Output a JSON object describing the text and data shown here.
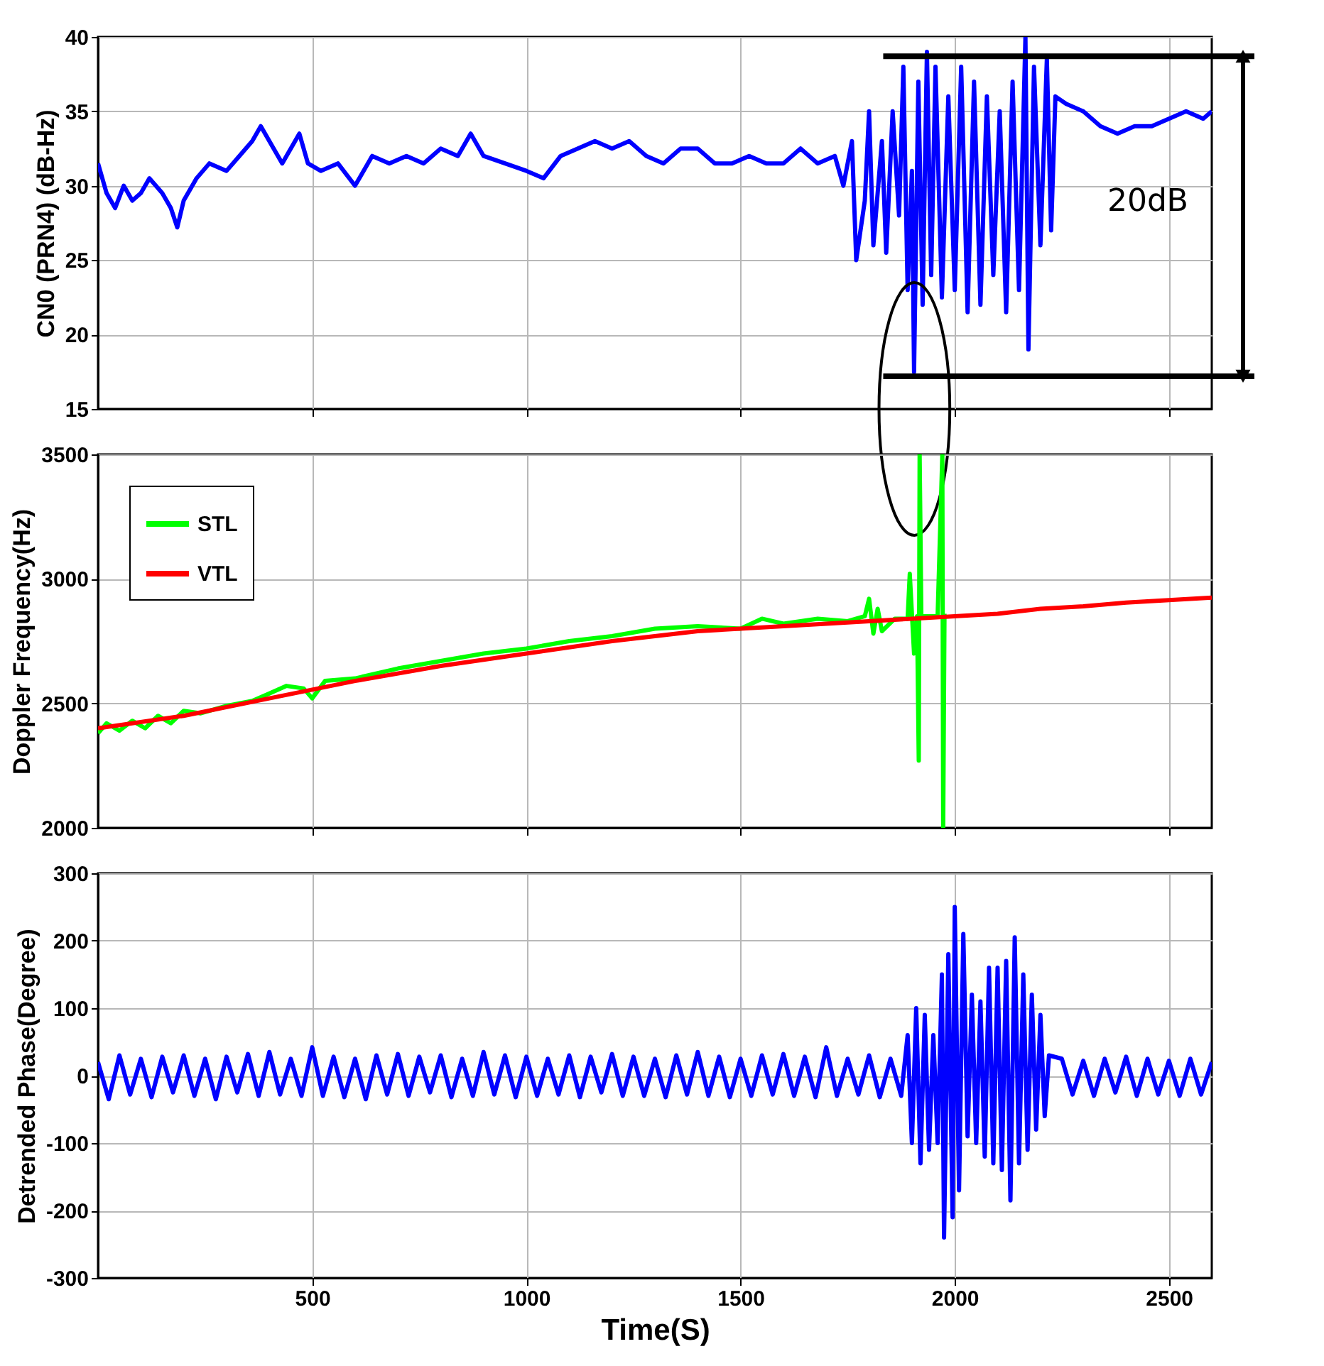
{
  "chart_data": [
    {
      "type": "line",
      "ylabel": "CN0 (PRN4) (dB-Hz)",
      "xlim": [
        0,
        2600
      ],
      "ylim": [
        15,
        40
      ],
      "xticks": [
        500,
        1000,
        1500,
        2000,
        2500
      ],
      "yticks": [
        15,
        20,
        25,
        30,
        35,
        40
      ],
      "grid": true,
      "tick_labels": "y",
      "series": [
        {
          "color": "#0000ff",
          "x": [
            0,
            20,
            40,
            60,
            80,
            100,
            120,
            150,
            170,
            185,
            200,
            230,
            260,
            300,
            330,
            360,
            380,
            400,
            430,
            470,
            490,
            520,
            560,
            600,
            640,
            680,
            720,
            760,
            800,
            840,
            870,
            900,
            950,
            1000,
            1040,
            1080,
            1120,
            1160,
            1200,
            1240,
            1280,
            1320,
            1360,
            1400,
            1440,
            1480,
            1520,
            1560,
            1600,
            1640,
            1680,
            1720,
            1740,
            1760,
            1770,
            1790,
            1800,
            1810,
            1830,
            1840,
            1855,
            1870,
            1880,
            1890,
            1900,
            1905,
            1915,
            1925,
            1935,
            1945,
            1955,
            1970,
            1985,
            2000,
            2015,
            2030,
            2045,
            2060,
            2075,
            2090,
            2105,
            2120,
            2135,
            2150,
            2165,
            2172,
            2185,
            2200,
            2215,
            2225,
            2235,
            2260,
            2300,
            2340,
            2380,
            2420,
            2460,
            2500,
            2540,
            2580,
            2600
          ],
          "values": [
            31.5,
            29.5,
            28.5,
            30,
            29,
            29.5,
            30.5,
            29.5,
            28.5,
            27.2,
            29,
            30.5,
            31.5,
            31,
            32,
            33,
            34,
            33,
            31.5,
            33.5,
            31.5,
            31,
            31.5,
            30,
            32,
            31.5,
            32,
            31.5,
            32.5,
            32,
            33.5,
            32,
            31.5,
            31,
            30.5,
            32,
            32.5,
            33,
            32.5,
            33,
            32,
            31.5,
            32.5,
            32.5,
            31.5,
            31.5,
            32,
            31.5,
            31.5,
            32.5,
            31.5,
            32,
            30,
            33,
            25,
            29,
            35,
            26,
            33,
            25.5,
            35,
            28,
            38,
            23,
            31,
            17.5,
            37,
            22,
            39,
            24,
            38,
            22.5,
            36,
            23,
            38,
            21.5,
            37,
            22,
            36,
            24,
            35,
            21.5,
            37,
            23,
            40,
            19,
            38,
            26,
            38.5,
            27,
            36,
            35.5,
            35,
            34,
            33.5,
            34,
            34,
            34.5,
            35,
            34.5,
            35
          ]
        }
      ],
      "ref_lines": [
        {
          "axis": "y",
          "value": 38.7,
          "color": "#000000"
        },
        {
          "axis": "y",
          "value": 17.2,
          "color": "#000000"
        }
      ],
      "annotations": [
        "20dB"
      ]
    },
    {
      "type": "line",
      "ylabel": "Doppler Frequency(Hz)",
      "xlim": [
        0,
        2600
      ],
      "ylim": [
        2000,
        3500
      ],
      "xticks": [
        500,
        1000,
        1500,
        2000,
        2500
      ],
      "yticks": [
        2000,
        2500,
        3000,
        3500
      ],
      "grid": true,
      "tick_labels": "y",
      "legend": "top left",
      "series": [
        {
          "name": "STL",
          "color": "#00ff00",
          "x": [
            0,
            20,
            50,
            80,
            110,
            140,
            170,
            200,
            240,
            300,
            360,
            400,
            440,
            480,
            500,
            530,
            600,
            700,
            800,
            900,
            1000,
            1100,
            1200,
            1300,
            1400,
            1500,
            1550,
            1600,
            1680,
            1750,
            1790,
            1800,
            1810,
            1820,
            1830,
            1860,
            1890,
            1895,
            1905,
            1912,
            1916,
            1918,
            1922,
            1960,
            1971,
            1973,
            1976
          ],
          "values": [
            2380,
            2420,
            2390,
            2430,
            2400,
            2450,
            2420,
            2470,
            2460,
            2490,
            2510,
            2540,
            2570,
            2560,
            2520,
            2590,
            2600,
            2640,
            2670,
            2700,
            2720,
            2750,
            2770,
            2800,
            2810,
            2800,
            2840,
            2820,
            2840,
            2830,
            2850,
            2920,
            2780,
            2880,
            2790,
            2840,
            2840,
            3020,
            2700,
            2850,
            2270,
            3500,
            2850,
            2850,
            3500,
            2000,
            2860
          ]
        },
        {
          "name": "VTL",
          "color": "#ff0000",
          "x": [
            0,
            200,
            400,
            600,
            800,
            1000,
            1200,
            1400,
            1600,
            1800,
            1900,
            2000,
            2100,
            2200,
            2300,
            2400,
            2500,
            2600
          ],
          "values": [
            2400,
            2450,
            2520,
            2590,
            2650,
            2700,
            2750,
            2790,
            2810,
            2830,
            2840,
            2850,
            2860,
            2880,
            2890,
            2905,
            2915,
            2925
          ]
        }
      ]
    },
    {
      "type": "line",
      "ylabel": "Detrended Phase(Degree)",
      "xlabel": "Time(S)",
      "xlim": [
        0,
        2600
      ],
      "ylim": [
        -300,
        300
      ],
      "xticks": [
        500,
        1000,
        1500,
        2000,
        2500
      ],
      "yticks": [
        -300,
        -200,
        -100,
        0,
        100,
        200,
        300
      ],
      "grid": true,
      "series": [
        {
          "color": "#0000ff",
          "x": [
            0,
            25,
            50,
            75,
            100,
            125,
            150,
            175,
            200,
            225,
            250,
            275,
            300,
            325,
            350,
            375,
            400,
            425,
            450,
            475,
            500,
            525,
            550,
            575,
            600,
            625,
            650,
            675,
            700,
            725,
            750,
            775,
            800,
            825,
            850,
            875,
            900,
            925,
            950,
            975,
            1000,
            1025,
            1050,
            1075,
            1100,
            1125,
            1150,
            1175,
            1200,
            1225,
            1250,
            1275,
            1300,
            1325,
            1350,
            1375,
            1400,
            1425,
            1450,
            1475,
            1500,
            1525,
            1550,
            1575,
            1600,
            1625,
            1650,
            1675,
            1700,
            1725,
            1750,
            1775,
            1800,
            1825,
            1850,
            1875,
            1890,
            1900,
            1910,
            1920,
            1930,
            1940,
            1950,
            1960,
            1970,
            1975,
            1985,
            1995,
            2000,
            2010,
            2020,
            2030,
            2040,
            2050,
            2060,
            2070,
            2080,
            2090,
            2100,
            2110,
            2120,
            2130,
            2140,
            2150,
            2160,
            2170,
            2180,
            2190,
            2200,
            2210,
            2220,
            2250,
            2275,
            2300,
            2325,
            2350,
            2375,
            2400,
            2425,
            2450,
            2475,
            2500,
            2525,
            2550,
            2575,
            2600
          ],
          "values": [
            20,
            -35,
            30,
            -28,
            25,
            -32,
            28,
            -25,
            30,
            -30,
            25,
            -35,
            28,
            -25,
            32,
            -30,
            35,
            -28,
            25,
            -30,
            42,
            -30,
            28,
            -32,
            25,
            -35,
            30,
            -28,
            32,
            -30,
            28,
            -25,
            30,
            -32,
            25,
            -30,
            35,
            -28,
            30,
            -32,
            28,
            -30,
            25,
            -28,
            30,
            -32,
            28,
            -25,
            32,
            -30,
            28,
            -30,
            25,
            -32,
            30,
            -28,
            35,
            -30,
            28,
            -32,
            25,
            -30,
            30,
            -28,
            32,
            -30,
            28,
            -32,
            42,
            -30,
            25,
            -28,
            30,
            -32,
            25,
            -30,
            60,
            -100,
            100,
            -130,
            90,
            -110,
            60,
            -100,
            150,
            -240,
            180,
            -210,
            250,
            -170,
            210,
            -90,
            120,
            -100,
            110,
            -120,
            160,
            -130,
            160,
            -140,
            170,
            -185,
            205,
            -130,
            150,
            -110,
            120,
            -80,
            90,
            -60,
            30,
            25,
            -28,
            22,
            -30,
            25,
            -25,
            28,
            -30,
            25,
            -28,
            22,
            -30,
            25,
            -28,
            20
          ]
        }
      ]
    }
  ]
}
